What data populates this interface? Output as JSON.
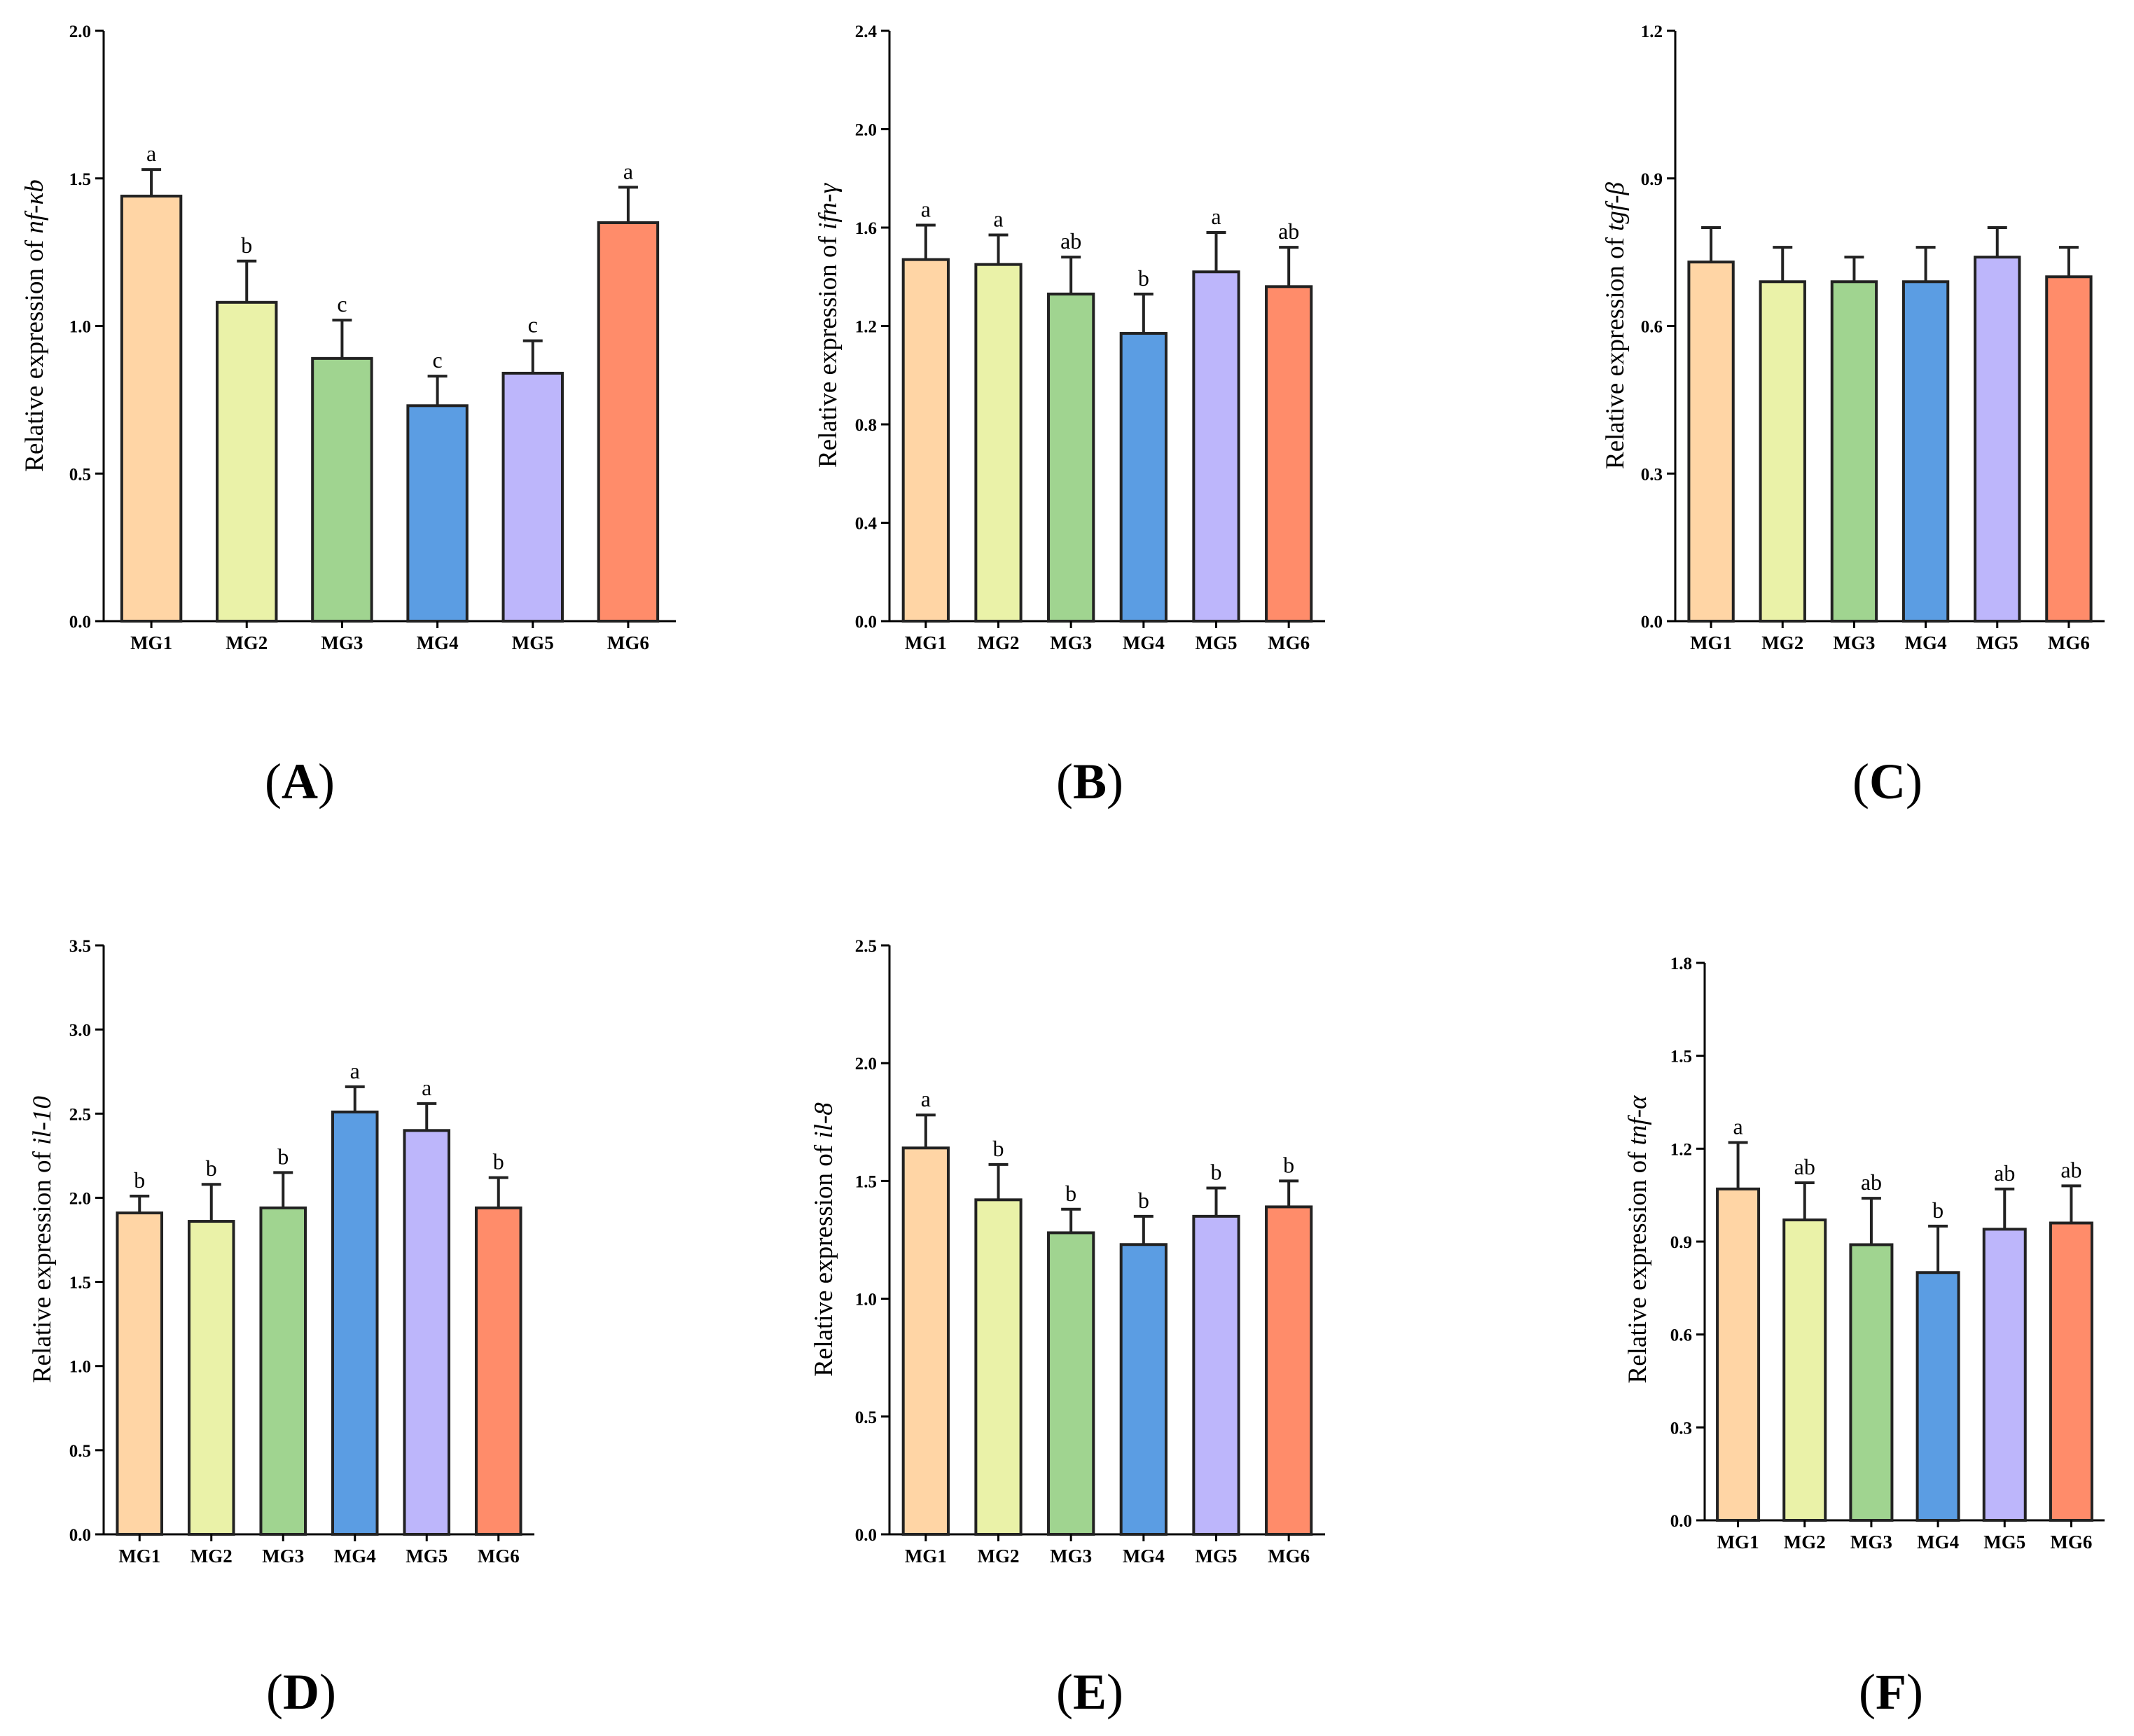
{
  "figure": {
    "groups": [
      "MG1",
      "MG2",
      "MG3",
      "MG4",
      "MG5",
      "MG6"
    ],
    "colors": [
      "#FFD5A5",
      "#EAF2A8",
      "#A0D490",
      "#5B9DE3",
      "#BDB6FB",
      "#FF8C6A"
    ]
  },
  "chart_data": [
    {
      "type": "bar",
      "panel": "A",
      "categories": [
        "MG1",
        "MG2",
        "MG3",
        "MG4",
        "MG5",
        "MG6"
      ],
      "values": [
        1.44,
        1.08,
        0.89,
        0.73,
        0.84,
        1.35
      ],
      "errors": [
        0.09,
        0.14,
        0.13,
        0.1,
        0.11,
        0.12
      ],
      "significance": [
        "a",
        "b",
        "c",
        "c",
        "c",
        "a"
      ],
      "ylabel_prefix": "Relative expression of",
      "ylabel_gene": "nf-κb",
      "ylim": [
        0,
        2.0
      ],
      "yticks": [
        "0.0",
        "0.5",
        "1.0",
        "1.5",
        "2.0"
      ]
    },
    {
      "type": "bar",
      "panel": "B",
      "categories": [
        "MG1",
        "MG2",
        "MG3",
        "MG4",
        "MG5",
        "MG6"
      ],
      "values": [
        1.47,
        1.45,
        1.33,
        1.17,
        1.42,
        1.36
      ],
      "errors": [
        0.14,
        0.12,
        0.15,
        0.16,
        0.16,
        0.16
      ],
      "significance": [
        "a",
        "a",
        "ab",
        "b",
        "a",
        "ab"
      ],
      "ylabel_prefix": "Relative expression of",
      "ylabel_gene": "ifn-γ",
      "ylim": [
        0,
        2.4
      ],
      "yticks": [
        "0.0",
        "0.4",
        "0.8",
        "1.2",
        "1.6",
        "2.0",
        "2.4"
      ]
    },
    {
      "type": "bar",
      "panel": "C",
      "categories": [
        "MG1",
        "MG2",
        "MG3",
        "MG4",
        "MG5",
        "MG6"
      ],
      "values": [
        0.73,
        0.69,
        0.69,
        0.69,
        0.74,
        0.7
      ],
      "errors": [
        0.07,
        0.07,
        0.05,
        0.07,
        0.06,
        0.06
      ],
      "significance": [],
      "ylabel_prefix": "Relative expression of",
      "ylabel_gene": "tgf-β",
      "ylim": [
        0,
        1.2
      ],
      "yticks": [
        "0.0",
        "0.3",
        "0.6",
        "0.9",
        "1.2"
      ]
    },
    {
      "type": "bar",
      "panel": "D",
      "categories": [
        "MG1",
        "MG2",
        "MG3",
        "MG4",
        "MG5",
        "MG6"
      ],
      "values": [
        1.91,
        1.86,
        1.94,
        2.51,
        2.4,
        1.94
      ],
      "errors": [
        0.1,
        0.22,
        0.21,
        0.15,
        0.16,
        0.18
      ],
      "significance": [
        "b",
        "b",
        "b",
        "a",
        "a",
        "b"
      ],
      "ylabel_prefix": "Relative expression of",
      "ylabel_gene": "il-10",
      "ylim": [
        0,
        3.5
      ],
      "yticks": [
        "0.0",
        "0.5",
        "1.0",
        "1.5",
        "2.0",
        "2.5",
        "3.0",
        "3.5"
      ]
    },
    {
      "type": "bar",
      "panel": "E",
      "categories": [
        "MG1",
        "MG2",
        "MG3",
        "MG4",
        "MG5",
        "MG6"
      ],
      "values": [
        1.64,
        1.42,
        1.28,
        1.23,
        1.35,
        1.39
      ],
      "errors": [
        0.14,
        0.15,
        0.1,
        0.12,
        0.12,
        0.11
      ],
      "significance": [
        "a",
        "b",
        "b",
        "b",
        "b",
        "b"
      ],
      "ylabel_prefix": "Relative expression of",
      "ylabel_gene": "il-8",
      "ylim": [
        0,
        2.5
      ],
      "yticks": [
        "0.0",
        "0.5",
        "1.0",
        "1.5",
        "2.0",
        "2.5"
      ]
    },
    {
      "type": "bar",
      "panel": "F",
      "categories": [
        "MG1",
        "MG2",
        "MG3",
        "MG4",
        "MG5",
        "MG6"
      ],
      "values": [
        1.07,
        0.97,
        0.89,
        0.8,
        0.94,
        0.96
      ],
      "errors": [
        0.15,
        0.12,
        0.15,
        0.15,
        0.13,
        0.12
      ],
      "significance": [
        "a",
        "ab",
        "ab",
        "b",
        "ab",
        "ab"
      ],
      "ylabel_prefix": "Relative expression of",
      "ylabel_gene": "tnf-α",
      "ylim": [
        0,
        1.8
      ],
      "yticks": [
        "0.0",
        "0.3",
        "0.6",
        "0.9",
        "1.2",
        "1.5",
        "1.8"
      ]
    }
  ]
}
